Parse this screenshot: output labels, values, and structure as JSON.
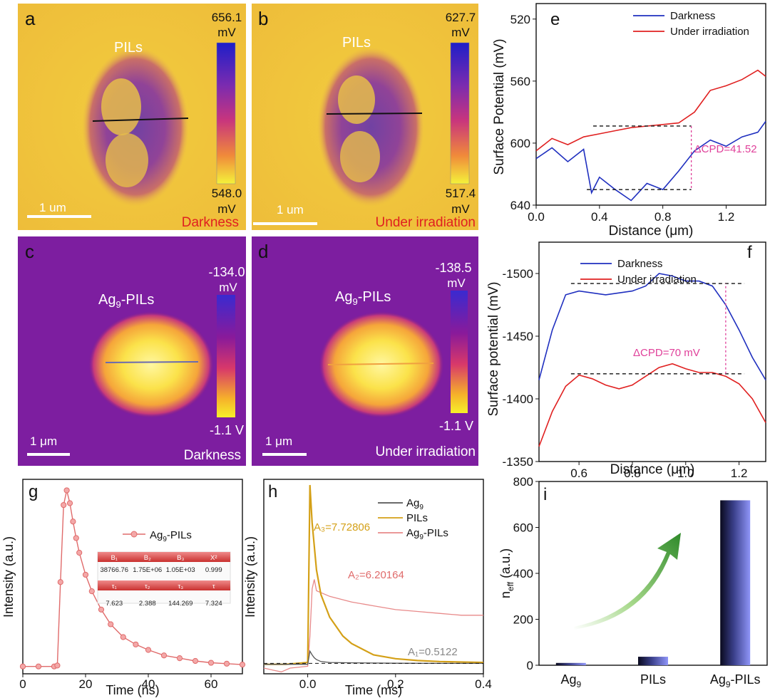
{
  "colors": {
    "darkness": "#1f2fbf",
    "irradiation": "#e02020",
    "pink": "#e0409a",
    "gold": "#d4a017",
    "grey": "#555555",
    "kpfm_label": "#e02020"
  },
  "panel_a": {
    "letter": "a",
    "title": "PILs",
    "scale_max": "656.1",
    "scale_max_unit": "mV",
    "scale_min": "548.0",
    "scale_min_unit": "mV",
    "scalebar": "1 um",
    "condition": "Darkness"
  },
  "panel_b": {
    "letter": "b",
    "title": "PILs",
    "scale_max": "627.7",
    "scale_max_unit": "mV",
    "scale_min": "517.4",
    "scale_min_unit": "mV",
    "scalebar": "1 um",
    "condition": "Under irradiation"
  },
  "panel_c": {
    "letter": "c",
    "title_main": "Ag",
    "title_sub": "9",
    "title_rest": "-PILs",
    "scale_max": "-134.0",
    "scale_max_unit": "mV",
    "scale_min": "-1.1 V",
    "scalebar": "1 μm",
    "condition": "Darkness"
  },
  "panel_d": {
    "letter": "d",
    "title_main": "Ag",
    "title_sub": "9",
    "title_rest": "-PILs",
    "scale_max": "-138.5",
    "scale_max_unit": "mV",
    "scale_min": "-1.1 V",
    "scalebar": "1 μm",
    "condition": "Under irradiation"
  },
  "chart_data": [
    {
      "id": "e",
      "type": "line",
      "letter": "e",
      "xlabel": "Distance (μm)",
      "ylabel": "Surface Potential (mV)",
      "xlim": [
        0,
        1.45
      ],
      "ylim": [
        640,
        510
      ],
      "y_inverted": true,
      "xticks": [
        "0.0",
        "0.4",
        "0.8",
        "1.2"
      ],
      "yticks": [
        "520",
        "560",
        "600",
        "640"
      ],
      "legend": [
        "Darkness",
        "Under irradiation"
      ],
      "annotation": "ΔCPD=41.52",
      "series": [
        {
          "name": "Darkness",
          "x": [
            0,
            0.1,
            0.2,
            0.3,
            0.35,
            0.4,
            0.5,
            0.6,
            0.7,
            0.8,
            0.9,
            1.0,
            1.1,
            1.2,
            1.3,
            1.4,
            1.45
          ],
          "y": [
            610,
            603,
            612,
            604,
            632,
            622,
            630,
            637,
            626,
            630,
            618,
            605,
            598,
            602,
            596,
            593,
            586
          ]
        },
        {
          "name": "Under irradiation",
          "x": [
            0,
            0.1,
            0.2,
            0.3,
            0.4,
            0.5,
            0.6,
            0.7,
            0.8,
            0.9,
            1.0,
            1.1,
            1.2,
            1.3,
            1.4,
            1.45
          ],
          "y": [
            605,
            597,
            601,
            596,
            594,
            592,
            590,
            589,
            588,
            587,
            580,
            566,
            563,
            559,
            553,
            557
          ]
        }
      ],
      "dashed_levels": [
        {
          "x0": 0.36,
          "x1": 0.98,
          "y": 589
        },
        {
          "x0": 0.32,
          "x1": 0.98,
          "y": 630
        }
      ],
      "cpd_x": 0.98
    },
    {
      "id": "f",
      "type": "line",
      "letter": "f",
      "xlabel": "Distance (μm)",
      "ylabel": "Surface potential (mV)",
      "xlim": [
        0.45,
        1.3
      ],
      "ylim": [
        -1350,
        -1525
      ],
      "xticks": [
        "0.6",
        "0.8",
        "1.0",
        "1.2"
      ],
      "yticks": [
        "-1350",
        "-1400",
        "-1450",
        "-1500"
      ],
      "legend": [
        "Darkness",
        "Under irradiation"
      ],
      "annotation": "ΔCPD=70 mV",
      "series": [
        {
          "name": "Darkness",
          "x": [
            0.45,
            0.5,
            0.55,
            0.6,
            0.7,
            0.8,
            0.85,
            0.9,
            0.95,
            1.0,
            1.05,
            1.1,
            1.15,
            1.2,
            1.25,
            1.3
          ],
          "y": [
            -1415,
            -1455,
            -1483,
            -1486,
            -1483,
            -1486,
            -1490,
            -1500,
            -1498,
            -1494,
            -1494,
            -1490,
            -1475,
            -1455,
            -1433,
            -1415
          ]
        },
        {
          "name": "Under irradiation",
          "x": [
            0.45,
            0.5,
            0.55,
            0.6,
            0.65,
            0.7,
            0.75,
            0.8,
            0.85,
            0.9,
            0.95,
            1.0,
            1.05,
            1.1,
            1.15,
            1.2,
            1.25,
            1.3
          ],
          "y": [
            -1362,
            -1390,
            -1410,
            -1419,
            -1416,
            -1411,
            -1408,
            -1411,
            -1418,
            -1425,
            -1428,
            -1424,
            -1421,
            -1421,
            -1418,
            -1412,
            -1400,
            -1381
          ]
        }
      ],
      "dashed_levels": [
        {
          "x0": 0.57,
          "x1": 1.22,
          "y": -1420
        },
        {
          "x0": 0.57,
          "x1": 1.22,
          "y": -1492
        }
      ],
      "cpd_x": 1.15
    },
    {
      "id": "g",
      "type": "scatter",
      "letter": "g",
      "xlabel": "Time (ns)",
      "ylabel": "Intensity (a.u.)",
      "xlim": [
        0,
        70
      ],
      "xticks": [
        "0",
        "20",
        "40",
        "60"
      ],
      "legend": [
        "Ag9-PILs"
      ],
      "legend_main": "Ag",
      "legend_sub": "9",
      "legend_rest": "-PILs",
      "series": [
        {
          "name": "Ag9-PILs",
          "x": [
            0,
            5,
            10,
            11,
            12,
            13,
            14,
            15,
            16,
            17,
            18,
            20,
            22,
            25,
            28,
            32,
            36,
            40,
            45,
            50,
            55,
            60,
            65,
            70
          ],
          "y": [
            0.04,
            0.04,
            0.04,
            0.045,
            0.5,
            0.92,
            1.0,
            0.93,
            0.83,
            0.74,
            0.66,
            0.54,
            0.45,
            0.35,
            0.27,
            0.2,
            0.16,
            0.13,
            0.1,
            0.085,
            0.07,
            0.06,
            0.055,
            0.05
          ]
        }
      ],
      "fit_table": {
        "row1_headers": [
          "B₁",
          "B₂",
          "B₃",
          "X²"
        ],
        "row1_values": [
          "38766.76",
          "1.75E+06",
          "1.05E+03",
          "0.999"
        ],
        "row2_headers": [
          "τ₁",
          "τ₂",
          "τ₃",
          "τ"
        ],
        "row2_values": [
          "7.623",
          "2.388",
          "144.269",
          "7.324"
        ]
      }
    },
    {
      "id": "h",
      "type": "line",
      "letter": "h",
      "xlabel": "Time (ms)",
      "ylabel": "Intensity (a.u.)",
      "xlim": [
        -0.1,
        0.4
      ],
      "xticks": [
        "0.0",
        "0.2",
        "0.4"
      ],
      "legend": [
        "Ag9",
        "PILs",
        "Ag9-PILs"
      ],
      "annotations": [
        "A₃=7.72806",
        "A₂=6.20164",
        "A₁=0.5122"
      ],
      "series": [
        {
          "name": "Ag9",
          "x": [
            -0.1,
            -0.05,
            0.0,
            0.005,
            0.01,
            0.015,
            0.02,
            0.03,
            0.05,
            0.1,
            0.2,
            0.3,
            0.4
          ],
          "y": [
            0.05,
            0.05,
            0.05,
            0.12,
            0.1,
            0.085,
            0.075,
            0.065,
            0.06,
            0.058,
            0.056,
            0.055,
            0.055
          ]
        },
        {
          "name": "PILs",
          "x": [
            -0.1,
            -0.05,
            0.0,
            0.005,
            0.01,
            0.02,
            0.03,
            0.05,
            0.08,
            0.1,
            0.15,
            0.2,
            0.25,
            0.3,
            0.4
          ],
          "y": [
            0.05,
            0.05,
            0.06,
            1.0,
            0.8,
            0.55,
            0.42,
            0.3,
            0.2,
            0.16,
            0.1,
            0.08,
            0.07,
            0.065,
            0.06
          ]
        },
        {
          "name": "Ag9-PILs",
          "x": [
            -0.1,
            -0.08,
            -0.06,
            -0.04,
            0.0,
            0.005,
            0.01,
            0.015,
            0.02,
            0.05,
            0.1,
            0.15,
            0.2,
            0.25,
            0.3,
            0.35,
            0.4
          ],
          "y": [
            0.03,
            0.02,
            0.01,
            0.03,
            0.04,
            0.2,
            0.45,
            0.5,
            0.44,
            0.41,
            0.38,
            0.36,
            0.34,
            0.33,
            0.32,
            0.31,
            0.31
          ]
        }
      ]
    },
    {
      "id": "i",
      "type": "bar",
      "letter": "i",
      "ylabel": "n_eff (a.u.)",
      "ylabel_main": "n",
      "ylabel_sub": "eff",
      "ylabel_rest": " (a.u.)",
      "ylim": [
        0,
        800
      ],
      "yticks": [
        "0",
        "200",
        "400",
        "600",
        "800"
      ],
      "categories": [
        "Ag9",
        "PILs",
        "Ag9-PILs"
      ],
      "category_labels": [
        {
          "main": "Ag",
          "sub": "9",
          "rest": ""
        },
        {
          "main": "PILs",
          "sub": "",
          "rest": ""
        },
        {
          "main": "Ag",
          "sub": "9",
          "rest": "-PILs"
        }
      ],
      "values": [
        10,
        37,
        718
      ]
    }
  ]
}
